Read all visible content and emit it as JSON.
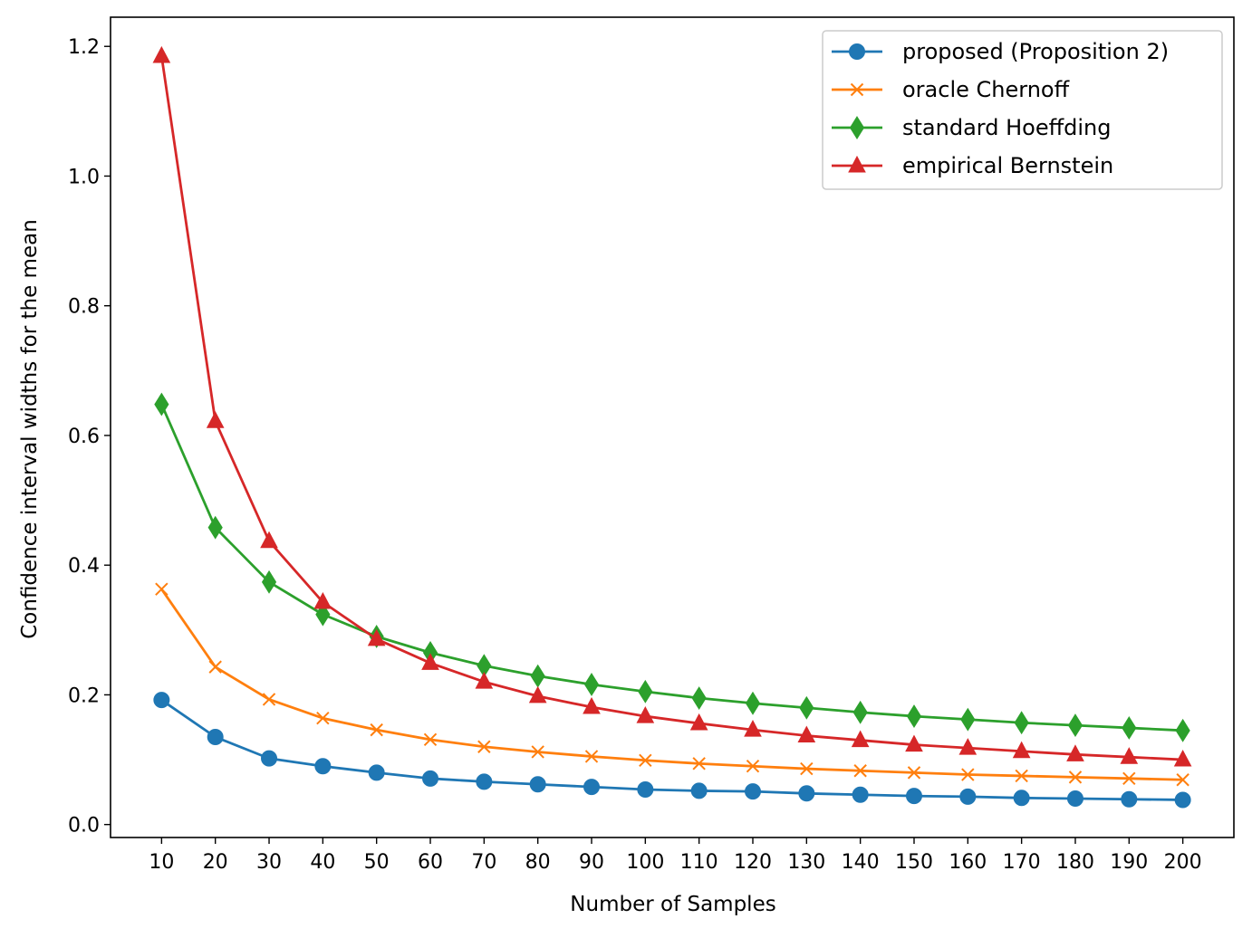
{
  "chart_data": {
    "type": "line",
    "title": "",
    "xlabel": "Number of Samples",
    "ylabel": "Confidence interval widths for the mean",
    "x": [
      10,
      20,
      30,
      40,
      50,
      60,
      70,
      80,
      90,
      100,
      110,
      120,
      130,
      140,
      150,
      160,
      170,
      180,
      190,
      200
    ],
    "xlim": [
      0.5,
      209.5
    ],
    "ylim": [
      -0.02,
      1.245
    ],
    "xticks": [
      "10",
      "20",
      "30",
      "40",
      "50",
      "60",
      "70",
      "80",
      "90",
      "100",
      "110",
      "120",
      "130",
      "140",
      "150",
      "160",
      "170",
      "180",
      "190",
      "200"
    ],
    "yticks": [
      "0.0",
      "0.2",
      "0.4",
      "0.6",
      "0.8",
      "1.0",
      "1.2"
    ],
    "ytick_values": [
      0.0,
      0.2,
      0.4,
      0.6,
      0.8,
      1.0,
      1.2
    ],
    "grid": false,
    "legend_position": "top-right",
    "series": [
      {
        "name": "proposed (Proposition 2)",
        "color": "#1f77b4",
        "marker": "circle",
        "values": [
          0.192,
          0.135,
          0.102,
          0.09,
          0.08,
          0.071,
          0.066,
          0.062,
          0.058,
          0.054,
          0.052,
          0.051,
          0.048,
          0.046,
          0.044,
          0.043,
          0.041,
          0.04,
          0.039,
          0.038
        ]
      },
      {
        "name": "oracle Chernoff",
        "color": "#ff7f0e",
        "marker": "x",
        "values": [
          0.363,
          0.243,
          0.193,
          0.164,
          0.146,
          0.131,
          0.12,
          0.112,
          0.105,
          0.099,
          0.094,
          0.09,
          0.086,
          0.083,
          0.08,
          0.077,
          0.075,
          0.073,
          0.071,
          0.069
        ]
      },
      {
        "name": "standard Hoeffding",
        "color": "#2ca02c",
        "marker": "diamond",
        "values": [
          0.648,
          0.458,
          0.374,
          0.324,
          0.29,
          0.265,
          0.245,
          0.229,
          0.216,
          0.205,
          0.195,
          0.187,
          0.18,
          0.173,
          0.167,
          0.162,
          0.157,
          0.153,
          0.149,
          0.145
        ]
      },
      {
        "name": "empirical Bernstein",
        "color": "#d62728",
        "marker": "triangle",
        "values": [
          1.185,
          0.622,
          0.437,
          0.343,
          0.286,
          0.249,
          0.22,
          0.198,
          0.181,
          0.167,
          0.156,
          0.146,
          0.137,
          0.13,
          0.123,
          0.118,
          0.113,
          0.108,
          0.104,
          0.1
        ]
      }
    ]
  }
}
